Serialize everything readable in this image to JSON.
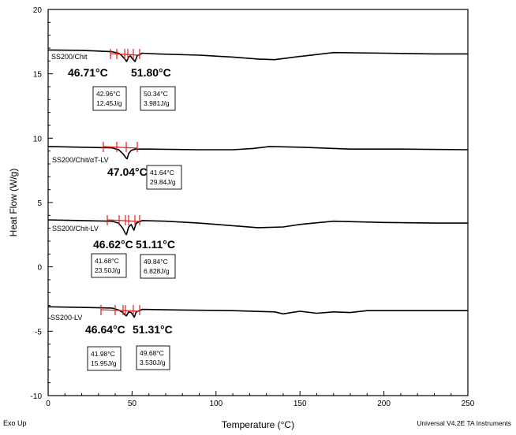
{
  "chart_data": {
    "type": "line",
    "title": "",
    "xlabel": "Temperature (°C)",
    "ylabel": "Heat Flow (W/g)",
    "xlim": [
      0,
      250
    ],
    "ylim": [
      -10,
      20
    ],
    "x_ticks": [
      0,
      50,
      100,
      150,
      200,
      250
    ],
    "y_ticks": [
      -10,
      -5,
      0,
      5,
      10,
      15,
      20
    ],
    "grid": false,
    "footer_left": "Exo Up",
    "footer_right": "Universal V4.2E TA Instruments",
    "series": [
      {
        "name": "SS200/Chit",
        "points": [
          [
            0,
            16.85
          ],
          [
            20,
            16.82
          ],
          [
            38,
            16.72
          ],
          [
            42,
            16.6
          ],
          [
            44,
            16.4
          ],
          [
            46,
            16.1
          ],
          [
            46.7,
            15.95
          ],
          [
            48,
            16.3
          ],
          [
            49,
            16.4
          ],
          [
            50,
            16.2
          ],
          [
            51.8,
            15.95
          ],
          [
            53,
            16.4
          ],
          [
            56,
            16.6
          ],
          [
            65,
            16.55
          ],
          [
            90,
            16.45
          ],
          [
            110,
            16.3
          ],
          [
            125,
            16.15
          ],
          [
            135,
            16.1
          ],
          [
            150,
            16.35
          ],
          [
            170,
            16.65
          ],
          [
            200,
            16.6
          ],
          [
            230,
            16.55
          ],
          [
            250,
            16.55
          ]
        ],
        "peaks": [
          {
            "label": "46.71°C",
            "onset": "42.96°C",
            "enthalpy": "12.45J/g"
          },
          {
            "label": "51.80°C",
            "onset": "50.34°C",
            "enthalpy": "3.981J/g"
          }
        ]
      },
      {
        "name": "SS200/Chit/αT-LV",
        "points": [
          [
            0,
            9.35
          ],
          [
            20,
            9.3
          ],
          [
            38,
            9.25
          ],
          [
            42,
            9.1
          ],
          [
            44.5,
            8.8
          ],
          [
            46.5,
            8.45
          ],
          [
            47.04,
            8.4
          ],
          [
            48,
            8.8
          ],
          [
            49.5,
            9.05
          ],
          [
            52,
            9.15
          ],
          [
            60,
            9.15
          ],
          [
            90,
            9.1
          ],
          [
            110,
            9.1
          ],
          [
            122,
            9.2
          ],
          [
            132,
            9.35
          ],
          [
            150,
            9.3
          ],
          [
            180,
            9.15
          ],
          [
            210,
            9.15
          ],
          [
            250,
            9.1
          ]
        ],
        "peaks": [
          {
            "label": "47.04°C",
            "onset": "41.64°C",
            "enthalpy": "29.84J/g"
          }
        ]
      },
      {
        "name": "SS200/Chit-LV",
        "points": [
          [
            0,
            3.65
          ],
          [
            20,
            3.6
          ],
          [
            38,
            3.55
          ],
          [
            42,
            3.4
          ],
          [
            44.5,
            3.0
          ],
          [
            46,
            2.6
          ],
          [
            46.62,
            2.5
          ],
          [
            48,
            3.1
          ],
          [
            49.5,
            3.3
          ],
          [
            51.1,
            2.85
          ],
          [
            52.5,
            3.4
          ],
          [
            56,
            3.6
          ],
          [
            70,
            3.55
          ],
          [
            90,
            3.4
          ],
          [
            110,
            3.2
          ],
          [
            125,
            3.05
          ],
          [
            140,
            3.1
          ],
          [
            150,
            3.3
          ],
          [
            170,
            3.55
          ],
          [
            200,
            3.45
          ],
          [
            230,
            3.4
          ],
          [
            250,
            3.4
          ]
        ],
        "peaks": [
          {
            "label": "46.62°C",
            "onset": "41.68°C",
            "enthalpy": "23.50J/g"
          },
          {
            "label": "51.11°C",
            "onset": "49.84°C",
            "enthalpy": "6.828J/g"
          }
        ]
      },
      {
        "name": "SS200-LV",
        "points": [
          [
            0,
            -3.1
          ],
          [
            20,
            -3.15
          ],
          [
            38,
            -3.2
          ],
          [
            42,
            -3.35
          ],
          [
            44.5,
            -3.55
          ],
          [
            46,
            -3.75
          ],
          [
            46.64,
            -3.8
          ],
          [
            48,
            -3.5
          ],
          [
            49.5,
            -3.55
          ],
          [
            51.31,
            -3.9
          ],
          [
            52.5,
            -3.5
          ],
          [
            56,
            -3.3
          ],
          [
            80,
            -3.35
          ],
          [
            110,
            -3.4
          ],
          [
            135,
            -3.5
          ],
          [
            140,
            -3.65
          ],
          [
            145,
            -3.55
          ],
          [
            150,
            -3.45
          ],
          [
            160,
            -3.6
          ],
          [
            170,
            -3.5
          ],
          [
            180,
            -3.55
          ],
          [
            190,
            -3.4
          ],
          [
            200,
            -3.4
          ],
          [
            230,
            -3.4
          ],
          [
            250,
            -3.4
          ]
        ],
        "peaks": [
          {
            "label": "46.64°C",
            "onset": "41.98°C",
            "enthalpy": "15.95J/g"
          },
          {
            "label": "51.31°C",
            "onset": "49.68°C",
            "enthalpy": "3.530J/g"
          }
        ]
      }
    ]
  }
}
